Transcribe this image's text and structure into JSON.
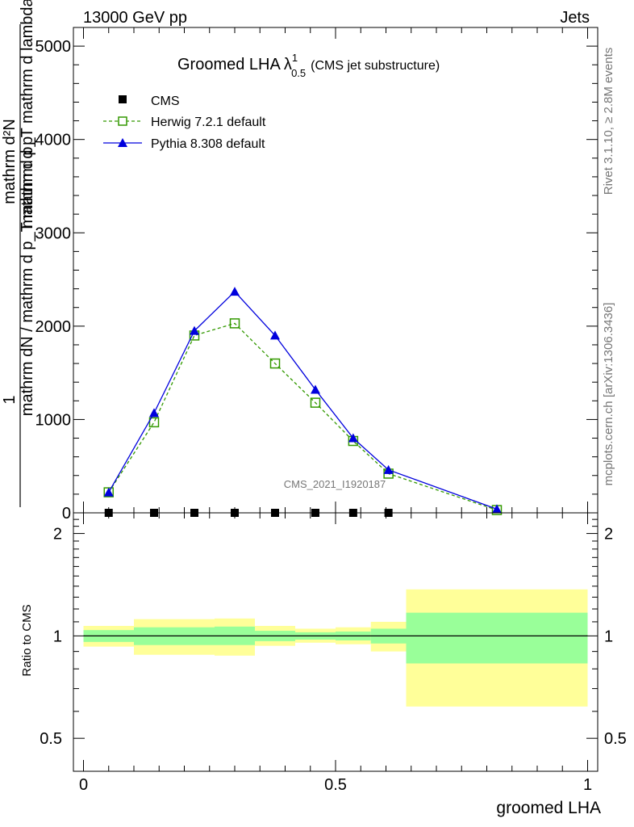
{
  "header": {
    "left": "13000 GeV pp",
    "right": "Jets"
  },
  "side_labels": {
    "rivet": "Rivet 3.1.10, ≥ 2.8M events",
    "mcplots": "mcplots.cern.ch [arXiv:1306.3436]"
  },
  "watermark": "CMS_2021_I1920187",
  "chart_data": [
    {
      "type": "line",
      "title": "Groomed LHA",
      "title_symbol": "λ",
      "title_sup": "1",
      "title_sub": "0.5",
      "subtitle": "(CMS jet substructure)",
      "xlabel": "groomed LHA",
      "ylabel_top": "mathrm d²N",
      "ylabel_bottom": "mathrm d p_T mathrm d lambda",
      "ylabel_bottom_sub": "T",
      "ylabel_prefix_top": "1",
      "ylabel_prefix_bottom": "mathrm dN / mathrm d p_T mathrm d p",
      "xlim": [
        -0.02,
        1.02
      ],
      "ylim": [
        0,
        5200
      ],
      "y_ticks": [
        {
          "value": 0,
          "label": "0"
        },
        {
          "value": 1000,
          "label": "1000"
        },
        {
          "value": 2000,
          "label": "2000"
        },
        {
          "value": 3000,
          "label": "3000"
        },
        {
          "value": 4000,
          "label": "4000"
        },
        {
          "value": 5000,
          "label": "5000"
        }
      ],
      "legend_position": "top-left",
      "series": [
        {
          "name": "CMS",
          "color": "#000000",
          "marker": "filled-square",
          "line": "none",
          "x": [
            0.05,
            0.14,
            0.22,
            0.3,
            0.38,
            0.46,
            0.535,
            0.605
          ],
          "y": [
            0,
            0,
            0,
            0,
            0,
            0,
            0,
            0
          ]
        },
        {
          "name": "Herwig 7.2.1 default",
          "color": "#339900",
          "marker": "open-square",
          "line": "dashed",
          "x": [
            0.05,
            0.14,
            0.22,
            0.3,
            0.38,
            0.46,
            0.535,
            0.605,
            0.82
          ],
          "y": [
            220,
            970,
            1900,
            2030,
            1600,
            1180,
            770,
            420,
            30
          ]
        },
        {
          "name": "Pythia 8.308 default",
          "color": "#0000dd",
          "marker": "filled-triangle",
          "line": "solid",
          "x": [
            0.05,
            0.14,
            0.22,
            0.3,
            0.38,
            0.46,
            0.535,
            0.605,
            0.82
          ],
          "y": [
            220,
            1070,
            1950,
            2370,
            1900,
            1320,
            800,
            460,
            40
          ]
        }
      ]
    },
    {
      "type": "area",
      "ylabel": "Ratio to CMS",
      "xlabel": "groomed LHA",
      "xlim": [
        -0.02,
        1.02
      ],
      "ylim": [
        0.4,
        2.3
      ],
      "y_scale": "log",
      "x_ticks": [
        {
          "value": 0,
          "label": "0"
        },
        {
          "value": 0.5,
          "label": "0.5"
        },
        {
          "value": 1,
          "label": "1"
        }
      ],
      "y_ticks": [
        {
          "value": 0.5,
          "label": "0.5"
        },
        {
          "value": 1,
          "label": "1"
        },
        {
          "value": 2,
          "label": "2"
        }
      ],
      "reference_line": 1,
      "bands": {
        "outer_color": "#ffff99",
        "inner_color": "#99ff99",
        "bins": [
          {
            "x0": 0.0,
            "x1": 0.1,
            "outer": [
              0.93,
              1.07
            ],
            "inner": [
              0.96,
              1.04
            ]
          },
          {
            "x0": 0.1,
            "x1": 0.26,
            "outer": [
              0.88,
              1.12
            ],
            "inner": [
              0.94,
              1.06
            ]
          },
          {
            "x0": 0.26,
            "x1": 0.34,
            "outer": [
              0.875,
              1.125
            ],
            "inner": [
              0.94,
              1.065
            ]
          },
          {
            "x0": 0.34,
            "x1": 0.42,
            "outer": [
              0.935,
              1.07
            ],
            "inner": [
              0.965,
              1.035
            ]
          },
          {
            "x0": 0.42,
            "x1": 0.5,
            "outer": [
              0.955,
              1.05
            ],
            "inner": [
              0.975,
              1.025
            ]
          },
          {
            "x0": 0.5,
            "x1": 0.57,
            "outer": [
              0.945,
              1.06
            ],
            "inner": [
              0.97,
              1.03
            ]
          },
          {
            "x0": 0.57,
            "x1": 0.64,
            "outer": [
              0.9,
              1.1
            ],
            "inner": [
              0.95,
              1.05
            ]
          },
          {
            "x0": 0.64,
            "x1": 1.0,
            "outer": [
              0.62,
              1.37
            ],
            "inner": [
              0.83,
              1.17
            ]
          }
        ]
      }
    }
  ]
}
